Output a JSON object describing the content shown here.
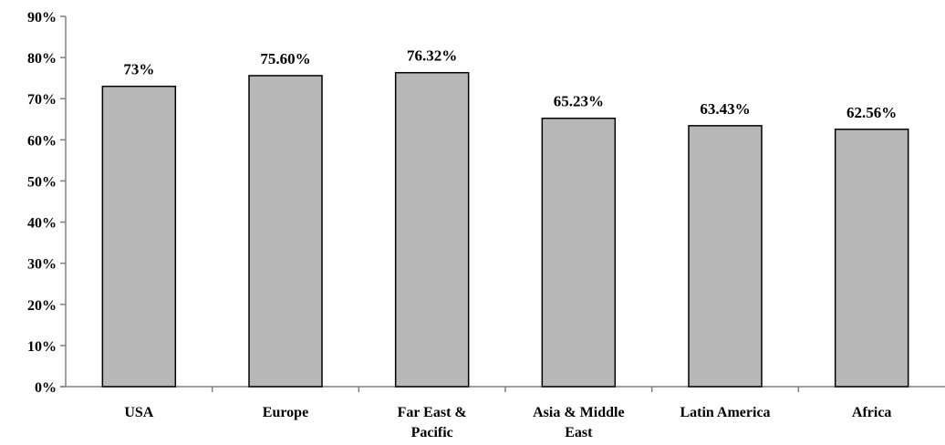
{
  "chart_data": {
    "type": "bar",
    "title": "",
    "xlabel": "",
    "ylabel": "",
    "categories": [
      [
        "USA"
      ],
      [
        "Europe"
      ],
      [
        "Far East &",
        "Pacific"
      ],
      [
        "Asia & Middle",
        "East"
      ],
      [
        "Latin America"
      ],
      [
        "Africa"
      ]
    ],
    "values": [
      73,
      75.6,
      76.32,
      65.23,
      63.43,
      62.56
    ],
    "data_labels": [
      "73%",
      "75.60%",
      "76.32%",
      "65.23%",
      "63.43%",
      "62.56%"
    ],
    "ylim": [
      0,
      90
    ],
    "y_ticks": [
      0,
      10,
      20,
      30,
      40,
      50,
      60,
      70,
      80,
      90
    ],
    "y_tick_labels": [
      "0%",
      "10%",
      "20%",
      "30%",
      "40%",
      "50%",
      "60%",
      "70%",
      "80%",
      "90%"
    ],
    "grid": false,
    "legend": "none",
    "colors": {
      "bar_fill": "#b8b8b8",
      "bar_stroke": "#000000",
      "axis": "#808080",
      "text": "#000000"
    }
  }
}
